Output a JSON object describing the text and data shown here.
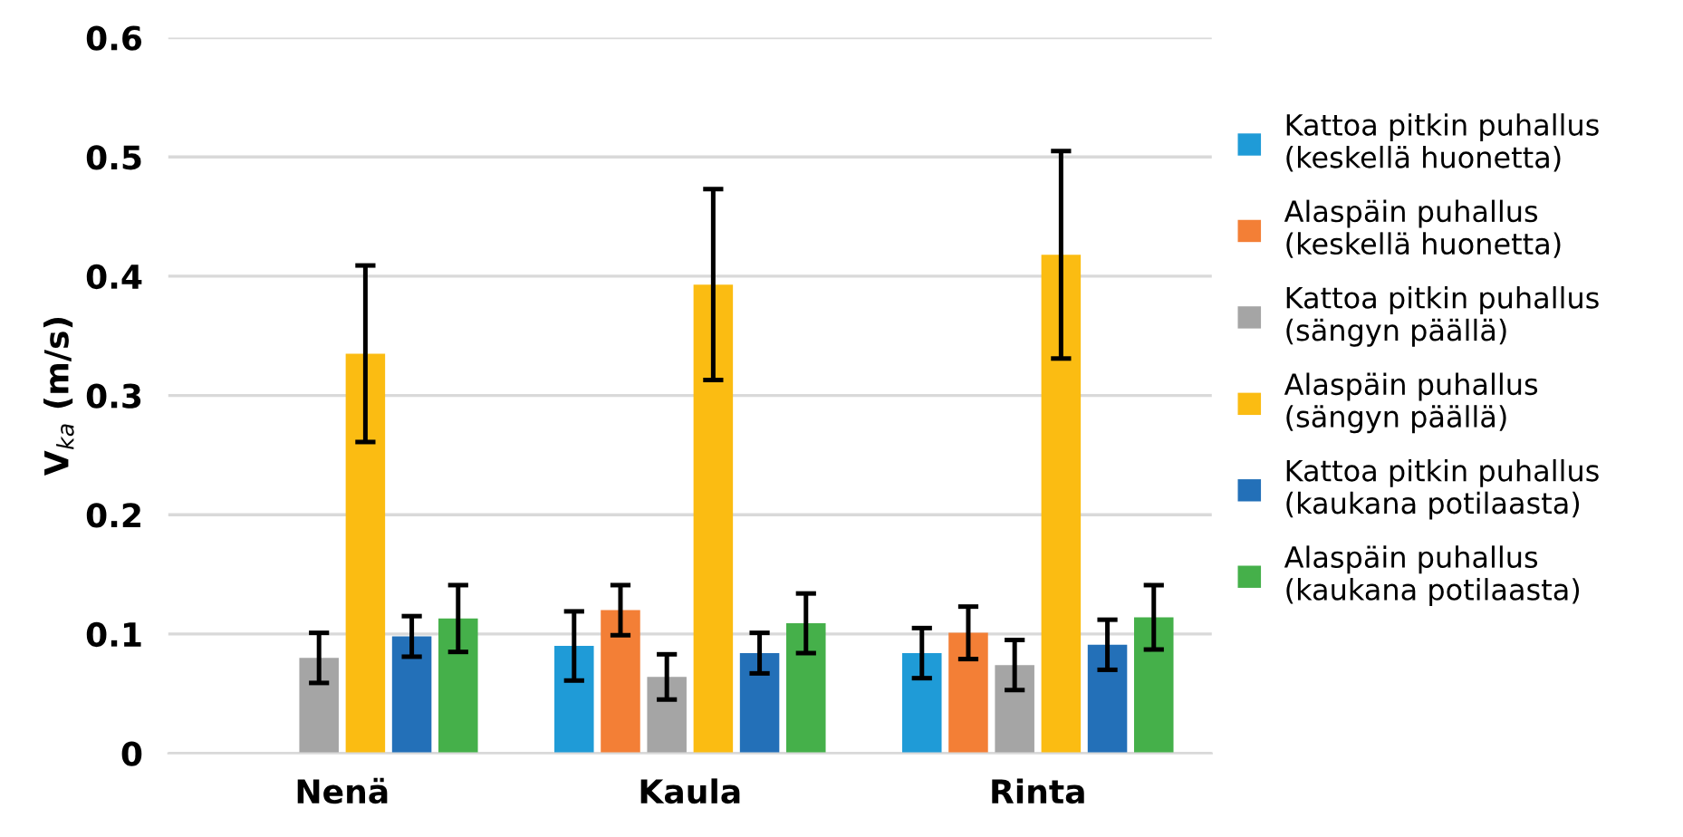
{
  "chart_data": {
    "type": "bar",
    "ylabel": "V$_{ka}$ (m/s)",
    "categories": [
      "Nenä",
      "Kaula",
      "Rinta"
    ],
    "ylim": [
      0,
      0.6
    ],
    "yticks": [
      0,
      0.1,
      0.2,
      0.3,
      0.4,
      0.5,
      0.6
    ],
    "grid": "y",
    "legend": "right",
    "series": [
      {
        "name": "Kattoa pitkin puhallus\n(keskellä huonetta)",
        "color": "#1f9bd7",
        "values": [
          null,
          0.09,
          0.084
        ],
        "errors": [
          null,
          0.029,
          0.021
        ]
      },
      {
        "name": "Alaspäin puhallus\n(keskellä huonetta)",
        "color": "#f37f36",
        "values": [
          null,
          0.12,
          0.101
        ],
        "errors": [
          null,
          0.021,
          0.022
        ]
      },
      {
        "name": "Kattoa pitkin puhallus\n(sängyn päällä)",
        "color": "#a5a5a5",
        "values": [
          0.08,
          0.064,
          0.074
        ],
        "errors": [
          0.021,
          0.019,
          0.021
        ]
      },
      {
        "name": "Alaspäin puhallus\n(sängyn päällä)",
        "color": "#fbbc12",
        "values": [
          0.335,
          0.393,
          0.418
        ],
        "errors": [
          0.074,
          0.08,
          0.087
        ]
      },
      {
        "name": "Kattoa pitkin puhallus\n(kaukana potilaasta)",
        "color": "#2370b8",
        "values": [
          0.098,
          0.084,
          0.091
        ],
        "errors": [
          0.017,
          0.017,
          0.021
        ]
      },
      {
        "name": "Alaspäin puhallus\n(kaukana potilaasta)",
        "color": "#45b04a",
        "values": [
          0.113,
          0.109,
          0.114
        ],
        "errors": [
          0.028,
          0.025,
          0.027
        ]
      }
    ]
  }
}
